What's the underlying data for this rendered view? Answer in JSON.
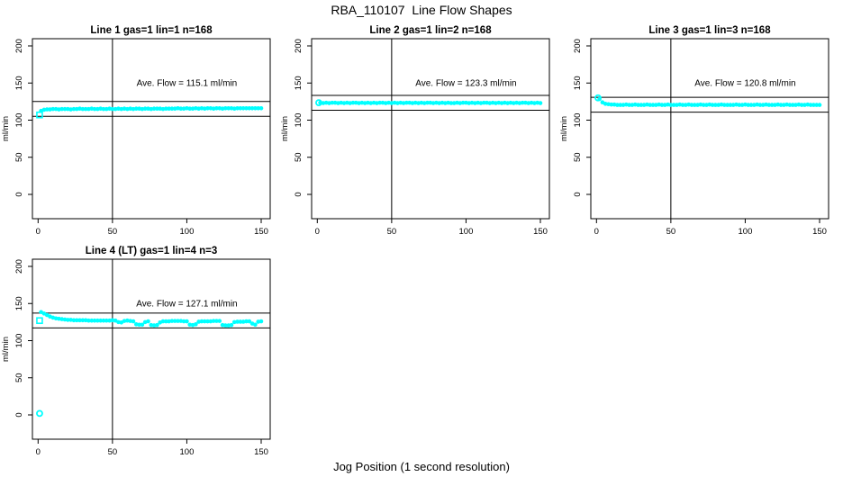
{
  "page": {
    "title": "RBA_110107  Line Flow Shapes",
    "xlabel": "Jog Position (1 second resolution)",
    "colors": {
      "points": "#00ffff",
      "axis": "#000000",
      "background": "#ffffff"
    }
  },
  "chart_data": {
    "type": "scatter",
    "title": "RBA_110107  Line Flow Shapes",
    "xlabel": "Jog Position (1 second resolution)",
    "ylabel": "ml/min",
    "legend": "none",
    "grid": false,
    "panels": [
      {
        "title": "Line 1 gas=1 lin=1 n=168",
        "annotation": "Ave. Flow =  115.1  ml/min",
        "ave_flow_ml_min": 115.1,
        "n": 168,
        "ylabel": "ml/min",
        "xticks": [
          0,
          50,
          100,
          150
        ],
        "yticks": [
          0,
          50,
          100,
          150,
          200
        ],
        "xlim": [
          -4,
          156
        ],
        "ylim": [
          -32,
          209
        ],
        "vline_x": 50,
        "hlines": [
          105.1,
          125.1
        ],
        "row": 0,
        "col": 0,
        "series": {
          "name": "flow",
          "x_start": 2,
          "x_step": 2,
          "y": [
            112.5,
            114,
            114.5,
            114.5,
            115,
            115,
            114.5,
            115,
            115,
            115,
            114.5,
            115,
            115,
            115.5,
            115,
            115,
            115,
            115.5,
            115,
            115,
            115.5,
            115,
            115,
            115.5,
            115,
            115,
            115.5,
            115,
            115.5,
            115,
            115.5,
            115,
            115.5,
            115.5,
            115,
            115.5,
            115.5,
            115,
            115.5,
            115.5,
            115.5,
            115,
            115.5,
            115.5,
            115.5,
            115.5,
            116,
            115.5,
            115.5,
            116,
            115.5,
            115.5,
            116,
            115.5,
            116,
            115.5,
            116,
            116,
            115.5,
            116,
            116,
            115.5,
            116,
            116,
            116,
            115.5,
            116,
            116,
            116,
            116,
            116,
            116,
            116,
            116,
            116
          ]
        },
        "outliers": [
          {
            "x": 1,
            "y": 107,
            "marker": "square-open"
          }
        ]
      },
      {
        "title": "Line 2 gas=1 lin=2 n=168",
        "annotation": "Ave. Flow =  123.3  ml/min",
        "ave_flow_ml_min": 123.3,
        "n": 168,
        "ylabel": "ml/min",
        "xticks": [
          0,
          50,
          100,
          150
        ],
        "yticks": [
          0,
          50,
          100,
          150,
          200
        ],
        "xlim": [
          -4,
          156
        ],
        "ylim": [
          -32,
          209
        ],
        "vline_x": 50,
        "hlines": [
          113.3,
          133.3
        ],
        "row": 0,
        "col": 1,
        "series": {
          "name": "flow",
          "x_start": 2,
          "x_step": 2,
          "y": [
            123.5,
            123,
            123.5,
            123,
            123.5,
            123.5,
            123,
            123.5,
            123,
            123.5,
            123,
            123.5,
            123.5,
            123,
            123.5,
            123,
            123.5,
            123,
            123.5,
            123,
            123.5,
            123.5,
            123,
            123.5,
            123,
            123.5,
            123,
            123.5,
            123,
            123.5,
            123.5,
            123,
            123.5,
            123,
            123.5,
            123,
            123.5,
            123.5,
            123,
            123.5,
            123,
            123.5,
            123,
            123.5,
            123,
            123,
            123.5,
            123,
            123.5,
            123.5,
            123,
            123.5,
            123,
            123.5,
            123,
            123.5,
            123.5,
            123,
            123.5,
            123,
            123.5,
            123,
            123.5,
            123,
            123.5,
            123,
            123.5,
            123,
            123.5,
            123.5,
            123,
            123.5,
            123,
            123.5,
            123
          ]
        },
        "outliers": [
          {
            "x": 1,
            "y": 123.5,
            "marker": "circle-open"
          }
        ]
      },
      {
        "title": "Line 3 gas=1 lin=3 n=168",
        "annotation": "Ave. Flow =  120.8  ml/min",
        "ave_flow_ml_min": 120.8,
        "n": 168,
        "ylabel": "ml/min",
        "xticks": [
          0,
          50,
          100,
          150
        ],
        "yticks": [
          0,
          50,
          100,
          150,
          200
        ],
        "xlim": [
          -4,
          156
        ],
        "ylim": [
          -32,
          209
        ],
        "vline_x": 50,
        "hlines": [
          110.8,
          130.8
        ],
        "row": 0,
        "col": 2,
        "series": {
          "name": "flow",
          "x_start": 2,
          "x_step": 2,
          "y": [
            128.5,
            124,
            122,
            121.5,
            121,
            121,
            120.5,
            120.5,
            120.5,
            121,
            120.5,
            120.5,
            121,
            120.5,
            120.5,
            120.5,
            121,
            120.5,
            120.5,
            120.5,
            121,
            120.5,
            120.5,
            121,
            120.5,
            120.5,
            120.5,
            121,
            120.5,
            120.5,
            121,
            120.5,
            120.5,
            120.5,
            121,
            120.5,
            120.5,
            121,
            120.5,
            120.5,
            120.5,
            121,
            120.5,
            120.5,
            120.5,
            120.5,
            121,
            120.5,
            120.5,
            121,
            120.5,
            120.5,
            120.5,
            121,
            120.5,
            120.5,
            121,
            120.5,
            120.5,
            120.5,
            121,
            120.5,
            120.5,
            121,
            120.5,
            120.5,
            120.5,
            121,
            120.5,
            120.5,
            121,
            120.5,
            120.5,
            120.5,
            120.5
          ]
        },
        "outliers": [
          {
            "x": 1,
            "y": 130,
            "marker": "circle-open"
          }
        ]
      },
      {
        "title": "Line 4 (LT) gas=1 lin=4 n=3",
        "annotation": "Ave. Flow =  127.1  ml/min",
        "ave_flow_ml_min": 127.1,
        "n": 3,
        "ylabel": "ml/min",
        "xticks": [
          0,
          50,
          100,
          150
        ],
        "yticks": [
          0,
          50,
          100,
          150,
          200
        ],
        "xlim": [
          -4,
          156
        ],
        "ylim": [
          -32,
          209
        ],
        "vline_x": 50,
        "hlines": [
          117.1,
          137.1
        ],
        "row": 1,
        "col": 0,
        "series": {
          "name": "flow",
          "x_start": 2,
          "x_step": 2,
          "y": [
            138.5,
            136.5,
            134.5,
            132.5,
            131,
            130,
            129.5,
            129,
            128.5,
            128,
            128,
            127.5,
            127.5,
            127.5,
            127.5,
            127.5,
            127,
            127,
            127,
            127,
            127,
            127,
            127,
            127,
            127.5,
            127,
            125,
            124.5,
            126.5,
            127,
            126.5,
            126,
            122,
            121.5,
            121.5,
            125,
            126,
            121,
            120.5,
            121,
            124.5,
            126,
            126,
            126,
            126.5,
            126.5,
            126.5,
            126.5,
            126,
            126,
            121.5,
            121,
            122,
            125.5,
            126,
            126,
            126,
            126,
            126.5,
            126.5,
            126.5,
            121,
            120.5,
            120.5,
            121,
            125,
            125.5,
            125.5,
            125.5,
            126,
            126,
            123,
            121.5,
            125.5,
            126
          ]
        },
        "outliers": [
          {
            "x": 1,
            "y": 2,
            "marker": "circle-open"
          },
          {
            "x": 1,
            "y": 127,
            "marker": "square-open"
          }
        ]
      }
    ]
  }
}
